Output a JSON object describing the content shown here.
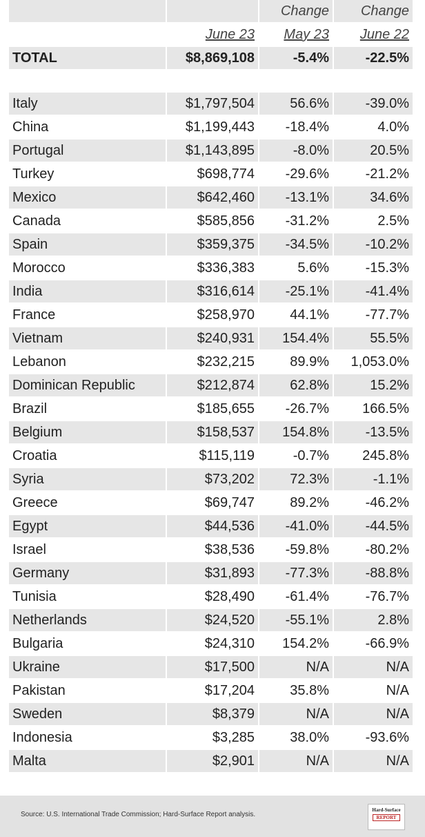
{
  "header": {
    "change_labels": [
      "Change",
      "Change"
    ],
    "periods": [
      "June 23",
      "May 23",
      "June 22"
    ]
  },
  "total": [
    "TOTAL",
    "$8,869,108",
    "-5.4%",
    "-22.5%"
  ],
  "rows": [
    [
      "Italy",
      "$1,797,504",
      "56.6%",
      "-39.0%"
    ],
    [
      "China",
      "$1,199,443",
      "-18.4%",
      "4.0%"
    ],
    [
      "Portugal",
      "$1,143,895",
      "-8.0%",
      "20.5%"
    ],
    [
      "Turkey",
      "$698,774",
      "-29.6%",
      "-21.2%"
    ],
    [
      "Mexico",
      "$642,460",
      "-13.1%",
      "34.6%"
    ],
    [
      "Canada",
      "$585,856",
      "-31.2%",
      "2.5%"
    ],
    [
      "Spain",
      "$359,375",
      "-34.5%",
      "-10.2%"
    ],
    [
      "Morocco",
      "$336,383",
      "5.6%",
      "-15.3%"
    ],
    [
      "India",
      "$316,614",
      "-25.1%",
      "-41.4%"
    ],
    [
      "France",
      "$258,970",
      "44.1%",
      "-77.7%"
    ],
    [
      "Vietnam",
      "$240,931",
      "154.4%",
      "55.5%"
    ],
    [
      "Lebanon",
      "$232,215",
      "89.9%",
      "1,053.0%"
    ],
    [
      "Dominican Republic",
      "$212,874",
      "62.8%",
      "15.2%"
    ],
    [
      "Brazil",
      "$185,655",
      "-26.7%",
      "166.5%"
    ],
    [
      "Belgium",
      "$158,537",
      "154.8%",
      "-13.5%"
    ],
    [
      "Croatia",
      "$115,119",
      "-0.7%",
      "245.8%"
    ],
    [
      "Syria",
      "$73,202",
      "72.3%",
      "-1.1%"
    ],
    [
      "Greece",
      "$69,747",
      "89.2%",
      "-46.2%"
    ],
    [
      "Egypt",
      "$44,536",
      "-41.0%",
      "-44.5%"
    ],
    [
      "Israel",
      "$38,536",
      "-59.8%",
      "-80.2%"
    ],
    [
      "Germany",
      "$31,893",
      "-77.3%",
      "-88.8%"
    ],
    [
      "Tunisia",
      "$28,490",
      "-61.4%",
      "-76.7%"
    ],
    [
      "Netherlands",
      "$24,520",
      "-55.1%",
      "2.8%"
    ],
    [
      "Bulgaria",
      "$24,310",
      "154.2%",
      "-66.9%"
    ],
    [
      "Ukraine",
      "$17,500",
      "N/A",
      "N/A"
    ],
    [
      "Pakistan",
      "$17,204",
      "35.8%",
      "N/A"
    ],
    [
      "Sweden",
      "$8,379",
      "N/A",
      "N/A"
    ],
    [
      "Indonesia",
      "$3,285",
      "38.0%",
      "-93.6%"
    ],
    [
      "Malta",
      "$2,901",
      "N/A",
      "N/A"
    ]
  ],
  "footer": {
    "source": "Source: U.S. International Trade Commission; Hard-Surface Report analysis.",
    "logo_title": "Hard-Surface",
    "logo_subtitle": "REPORT"
  }
}
